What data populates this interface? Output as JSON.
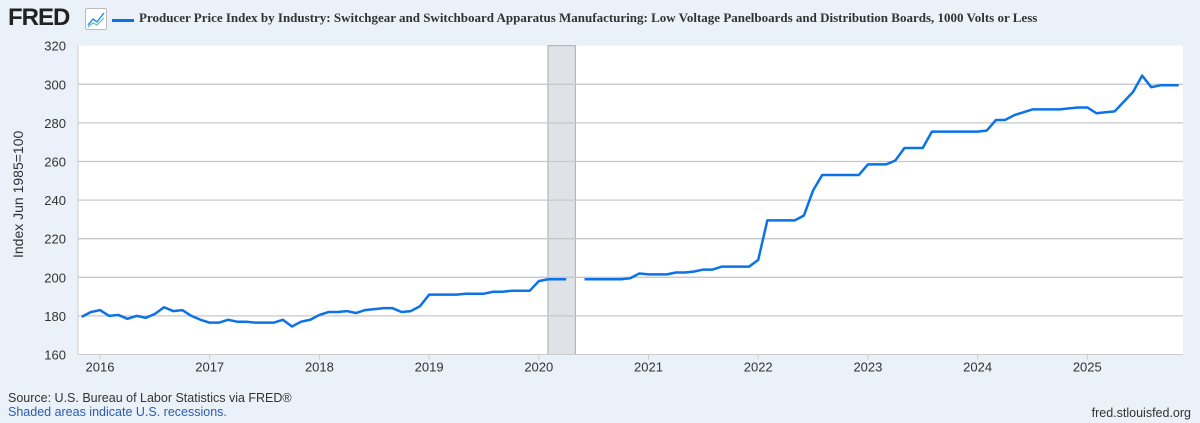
{
  "header": {
    "logo": "FRED",
    "title": "Producer Price Index by Industry: Switchgear and Switchboard Apparatus Manufacturing: Low Voltage Panelboards and Distribution Boards, 1000 Volts or Less"
  },
  "footer": {
    "source": "Source: U.S. Bureau of Labor Statistics via FRED®",
    "shaded_note": "Shaded areas indicate U.S. recessions.",
    "url": "fred.stlouisfed.org"
  },
  "chart_data": {
    "type": "line",
    "title": "Producer Price Index by Industry: Switchgear and Switchboard Apparatus Manufacturing: Low Voltage Panelboards and Distribution Boards, 1000 Volts or Less",
    "ylabel": "Index Jun 1985=100",
    "xlabel": "",
    "ylim": [
      160,
      320
    ],
    "xlim": [
      "2015-11",
      "2025-11"
    ],
    "yticks": [
      160,
      180,
      200,
      220,
      240,
      260,
      280,
      300,
      320
    ],
    "xticks": [
      "2016",
      "2017",
      "2018",
      "2019",
      "2020",
      "2021",
      "2022",
      "2023",
      "2024",
      "2025"
    ],
    "grid": true,
    "line_color": "#0b72e8",
    "recessions": [
      {
        "start": "2020-02",
        "end": "2020-04"
      }
    ],
    "start": "2015-11",
    "values": [
      179.5,
      182,
      183,
      180,
      180.5,
      178.5,
      180,
      179,
      181,
      184.5,
      182.5,
      183,
      180,
      178,
      176.5,
      176.5,
      178,
      177,
      177,
      176.5,
      176.5,
      176.5,
      178,
      174.5,
      177,
      178,
      180.5,
      182,
      182,
      182.5,
      181.5,
      183,
      183.5,
      184,
      184,
      182,
      182.5,
      185,
      191,
      191,
      191,
      191,
      191.5,
      191.5,
      191.5,
      192.5,
      192.5,
      193,
      193,
      193,
      198,
      199,
      199,
      199,
      null,
      199,
      199,
      199,
      199,
      199,
      199.5,
      202,
      201.5,
      201.5,
      201.5,
      202.5,
      202.5,
      203,
      204,
      204,
      205.5,
      205.5,
      205.5,
      205.5,
      209,
      229.5,
      229.5,
      229.5,
      229.5,
      232,
      245,
      253,
      253,
      253,
      253,
      253,
      258.5,
      258.5,
      258.5,
      260.5,
      267,
      267,
      267,
      275.5,
      275.5,
      275.5,
      275.5,
      275.5,
      275.5,
      276,
      281.5,
      281.5,
      284,
      285.5,
      287,
      287,
      287,
      287,
      287.5,
      288,
      288,
      285,
      285.5,
      286,
      291,
      296,
      304.5,
      298.5,
      299.5,
      299.5,
      299.5
    ]
  }
}
